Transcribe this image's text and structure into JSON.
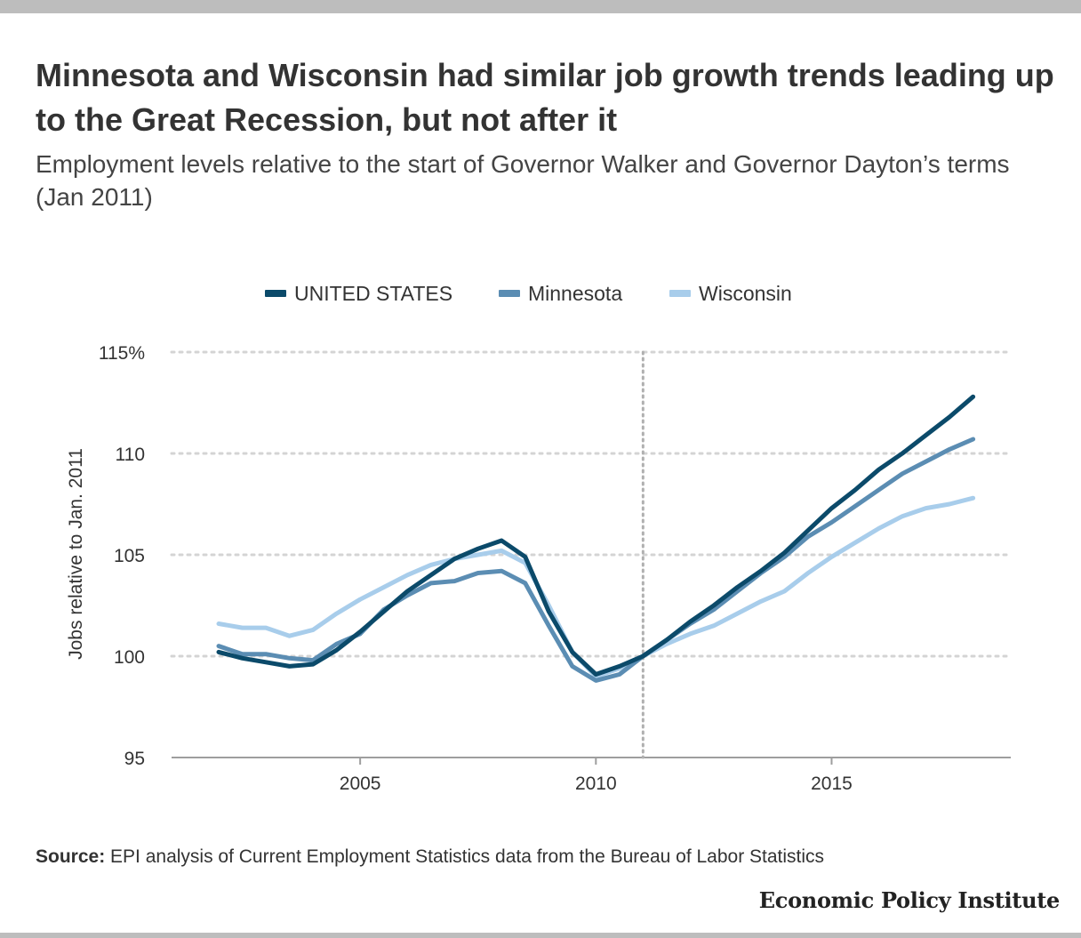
{
  "title": "Minnesota and Wisconsin had similar job growth trends leading up to the Great Recession, but not after it",
  "subtitle": "Employment levels relative to the start of Governor Walker and Governor Dayton’s terms (Jan 2011)",
  "source_label": "Source:",
  "source_text": " EPI analysis of Current Employment Statistics data from the Bureau of Labor Statistics",
  "logo_text": "Economic Policy Institute",
  "chart_data": {
    "type": "line",
    "title": "Minnesota and Wisconsin had similar job growth trends leading up to the Great Recession, but not after it",
    "subtitle": "Employment levels relative to the start of Governor Walker and Governor Dayton’s terms (Jan 2011)",
    "xlabel": "",
    "ylabel": "Jobs relative to Jan. 2011",
    "xlim": [
      2001,
      2018.8
    ],
    "ylim": [
      95,
      115
    ],
    "x_ticks": [
      2005,
      2010,
      2015
    ],
    "x_tick_labels": [
      "2005",
      "2010",
      "2015"
    ],
    "y_ticks": [
      95,
      100,
      105,
      110,
      115
    ],
    "y_tick_labels": [
      "95",
      "100",
      "105",
      "110",
      "115%"
    ],
    "grid": "horizontal dotted",
    "reference_line_x": 2011,
    "legend_position": "top-center",
    "series": [
      {
        "name": "UNITED STATES",
        "color": "#0b4a6a",
        "points": [
          [
            2002.0,
            100.2
          ],
          [
            2002.5,
            99.9
          ],
          [
            2003.0,
            99.7
          ],
          [
            2003.5,
            99.5
          ],
          [
            2004.0,
            99.6
          ],
          [
            2004.5,
            100.3
          ],
          [
            2005.0,
            101.2
          ],
          [
            2005.5,
            102.2
          ],
          [
            2006.0,
            103.2
          ],
          [
            2006.5,
            104.0
          ],
          [
            2007.0,
            104.8
          ],
          [
            2007.5,
            105.3
          ],
          [
            2008.0,
            105.7
          ],
          [
            2008.5,
            104.9
          ],
          [
            2009.0,
            102.2
          ],
          [
            2009.5,
            100.2
          ],
          [
            2010.0,
            99.1
          ],
          [
            2010.5,
            99.5
          ],
          [
            2011.0,
            100.0
          ],
          [
            2011.5,
            100.8
          ],
          [
            2012.0,
            101.7
          ],
          [
            2012.5,
            102.5
          ],
          [
            2013.0,
            103.4
          ],
          [
            2013.5,
            104.2
          ],
          [
            2014.0,
            105.1
          ],
          [
            2014.5,
            106.2
          ],
          [
            2015.0,
            107.3
          ],
          [
            2015.5,
            108.2
          ],
          [
            2016.0,
            109.2
          ],
          [
            2016.5,
            110.0
          ],
          [
            2017.0,
            110.9
          ],
          [
            2017.5,
            111.8
          ],
          [
            2018.0,
            112.8
          ]
        ]
      },
      {
        "name": "Minnesota",
        "color": "#5b8db3",
        "points": [
          [
            2002.0,
            100.5
          ],
          [
            2002.5,
            100.1
          ],
          [
            2003.0,
            100.1
          ],
          [
            2003.5,
            99.9
          ],
          [
            2004.0,
            99.8
          ],
          [
            2004.5,
            100.6
          ],
          [
            2005.0,
            101.1
          ],
          [
            2005.5,
            102.3
          ],
          [
            2006.0,
            103.0
          ],
          [
            2006.5,
            103.6
          ],
          [
            2007.0,
            103.7
          ],
          [
            2007.5,
            104.1
          ],
          [
            2008.0,
            104.2
          ],
          [
            2008.5,
            103.6
          ],
          [
            2009.0,
            101.5
          ],
          [
            2009.5,
            99.5
          ],
          [
            2010.0,
            98.8
          ],
          [
            2010.5,
            99.1
          ],
          [
            2011.0,
            100.0
          ],
          [
            2011.5,
            100.8
          ],
          [
            2012.0,
            101.6
          ],
          [
            2012.5,
            102.3
          ],
          [
            2013.0,
            103.2
          ],
          [
            2013.5,
            104.1
          ],
          [
            2014.0,
            104.9
          ],
          [
            2014.5,
            105.9
          ],
          [
            2015.0,
            106.6
          ],
          [
            2015.5,
            107.4
          ],
          [
            2016.0,
            108.2
          ],
          [
            2016.5,
            109.0
          ],
          [
            2017.0,
            109.6
          ],
          [
            2017.5,
            110.2
          ],
          [
            2018.0,
            110.7
          ]
        ]
      },
      {
        "name": "Wisconsin",
        "color": "#a8cdeb",
        "points": [
          [
            2002.0,
            101.6
          ],
          [
            2002.5,
            101.4
          ],
          [
            2003.0,
            101.4
          ],
          [
            2003.5,
            101.0
          ],
          [
            2004.0,
            101.3
          ],
          [
            2004.5,
            102.1
          ],
          [
            2005.0,
            102.8
          ],
          [
            2005.5,
            103.4
          ],
          [
            2006.0,
            104.0
          ],
          [
            2006.5,
            104.5
          ],
          [
            2007.0,
            104.8
          ],
          [
            2007.5,
            105.0
          ],
          [
            2008.0,
            105.2
          ],
          [
            2008.5,
            104.6
          ],
          [
            2009.0,
            102.5
          ],
          [
            2009.5,
            100.2
          ],
          [
            2010.0,
            99.0
          ],
          [
            2010.5,
            99.4
          ],
          [
            2011.0,
            100.0
          ],
          [
            2011.5,
            100.6
          ],
          [
            2012.0,
            101.1
          ],
          [
            2012.5,
            101.5
          ],
          [
            2013.0,
            102.1
          ],
          [
            2013.5,
            102.7
          ],
          [
            2014.0,
            103.2
          ],
          [
            2014.5,
            104.1
          ],
          [
            2015.0,
            104.9
          ],
          [
            2015.5,
            105.6
          ],
          [
            2016.0,
            106.3
          ],
          [
            2016.5,
            106.9
          ],
          [
            2017.0,
            107.3
          ],
          [
            2017.5,
            107.5
          ],
          [
            2018.0,
            107.8
          ]
        ]
      }
    ]
  }
}
